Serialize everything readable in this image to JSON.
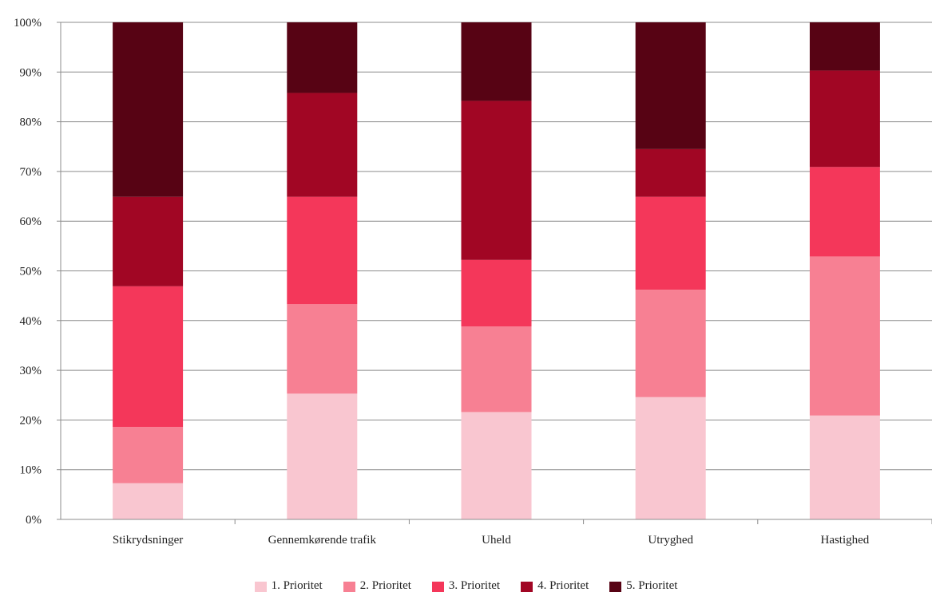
{
  "chart_data": {
    "type": "bar",
    "stacked": true,
    "percent": true,
    "categories": [
      "Stikrydsninger",
      "Gennemkørende trafik",
      "Uheld",
      "Utryghed",
      "Hastighed"
    ],
    "series": [
      {
        "name": "1. Prioritet",
        "color": "#f9c6d0",
        "values": [
          7.3,
          25.3,
          21.6,
          24.6,
          20.9
        ]
      },
      {
        "name": "2. Prioritet",
        "color": "#f78093",
        "values": [
          11.3,
          18.0,
          17.2,
          21.6,
          32.0
        ]
      },
      {
        "name": "3. Prioritet",
        "color": "#f4375a",
        "values": [
          28.3,
          21.6,
          13.4,
          18.7,
          18.0
        ]
      },
      {
        "name": "4. Prioritet",
        "color": "#a10624",
        "values": [
          18.0,
          20.9,
          32.0,
          9.6,
          19.4
        ]
      },
      {
        "name": "5. Prioritet",
        "color": "#570314",
        "values": [
          35.1,
          14.2,
          15.8,
          25.5,
          9.7
        ]
      }
    ],
    "yticks": [
      "0%",
      "10%",
      "20%",
      "30%",
      "40%",
      "50%",
      "60%",
      "70%",
      "80%",
      "90%",
      "100%"
    ],
    "ylim": [
      0,
      100
    ],
    "grid": true,
    "legend_position": "bottom"
  }
}
